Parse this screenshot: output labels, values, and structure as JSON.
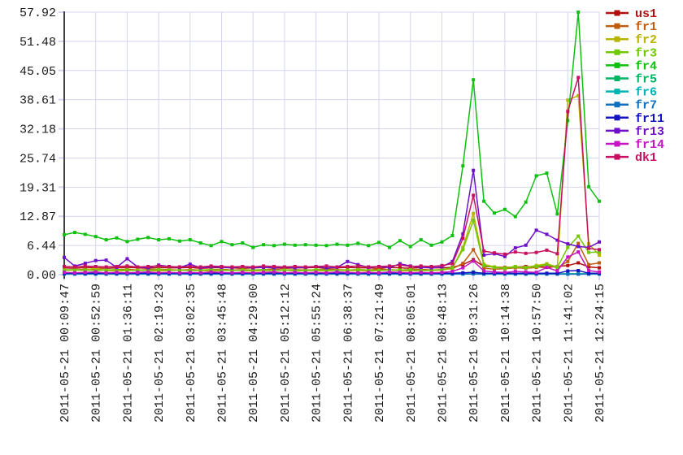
{
  "chart_data": {
    "type": "line",
    "title": "",
    "grid": true,
    "legend_position": "top-right",
    "grid_color": "#d4d4f0",
    "axis_color": "#404040",
    "label_color": "#1a1a1a",
    "ylim": [
      0,
      57.92
    ],
    "y_tick_labels": [
      "0.00",
      "6.44",
      "12.87",
      "19.31",
      "25.74",
      "32.18",
      "38.61",
      "45.05",
      "51.48",
      "57.92"
    ],
    "x_ticks_every": 3,
    "points_per_series": 52,
    "x_tick_labels": [
      "2011-05-21 00:09:47",
      "2011-05-21 00:52:59",
      "2011-05-21 01:36:11",
      "2011-05-21 02:19:23",
      "2011-05-21 03:02:35",
      "2011-05-21 03:45:48",
      "2011-05-21 04:29:00",
      "2011-05-21 05:12:12",
      "2011-05-21 05:55:24",
      "2011-05-21 06:38:37",
      "2011-05-21 07:21:49",
      "2011-05-21 08:05:01",
      "2011-05-21 08:48:13",
      "2011-05-21 09:31:26",
      "2011-05-21 10:14:38",
      "2011-05-21 10:57:50",
      "2011-05-21 11:41:02",
      "2011-05-21 12:24:15"
    ],
    "series": [
      {
        "name": "us1",
        "color": "#b01010",
        "values": [
          1.5,
          1.4,
          1.6,
          1.5,
          1.4,
          1.5,
          1.6,
          1.5,
          1.4,
          1.6,
          1.5,
          1.5,
          1.6,
          1.4,
          1.5,
          1.6,
          1.5,
          1.4,
          1.5,
          1.6,
          1.5,
          1.4,
          1.5,
          1.5,
          1.6,
          1.4,
          1.5,
          1.6,
          1.5,
          1.5,
          1.4,
          1.6,
          1.5,
          1.4,
          1.6,
          1.5,
          1.5,
          1.6,
          2.2,
          3.3,
          1.8,
          1.7,
          1.6,
          1.7,
          1.8,
          1.7,
          1.6,
          1.8,
          2.0,
          2.6,
          1.7,
          1.5
        ]
      },
      {
        "name": "fr1",
        "color": "#c05c10",
        "values": [
          1.1,
          1.0,
          1.2,
          1.1,
          1.0,
          1.1,
          1.2,
          1.0,
          1.1,
          1.2,
          1.1,
          1.0,
          1.1,
          1.0,
          1.1,
          1.2,
          1.0,
          1.1,
          1.0,
          1.1,
          1.2,
          1.0,
          1.1,
          1.0,
          1.1,
          1.2,
          1.1,
          1.0,
          1.1,
          1.0,
          1.2,
          1.1,
          1.0,
          1.1,
          1.2,
          1.0,
          1.1,
          1.3,
          2.5,
          5.5,
          1.4,
          1.2,
          1.3,
          1.5,
          1.4,
          1.6,
          2.1,
          1.5,
          2.9,
          6.9,
          2.2,
          2.6
        ]
      },
      {
        "name": "fr2",
        "color": "#b8b400",
        "values": [
          0.9,
          1.0,
          0.9,
          1.5,
          0.9,
          0.8,
          0.9,
          1.0,
          0.9,
          0.8,
          0.9,
          1.0,
          0.9,
          0.9,
          0.8,
          0.9,
          1.0,
          0.9,
          0.8,
          0.9,
          0.9,
          1.0,
          0.8,
          0.9,
          0.9,
          0.8,
          1.0,
          0.9,
          0.9,
          0.8,
          0.9,
          1.0,
          0.9,
          0.8,
          0.9,
          0.9,
          1.0,
          1.4,
          6.0,
          13.5,
          2.3,
          1.7,
          1.5,
          1.8,
          1.6,
          2.0,
          2.4,
          1.7,
          38.5,
          39.5,
          6.8,
          4.3
        ]
      },
      {
        "name": "fr3",
        "color": "#70c800",
        "values": [
          1.0,
          1.1,
          1.0,
          0.9,
          1.0,
          1.1,
          1.0,
          0.9,
          1.0,
          1.1,
          1.0,
          1.0,
          0.9,
          1.0,
          1.1,
          1.0,
          0.9,
          1.0,
          1.0,
          1.1,
          0.9,
          1.0,
          1.0,
          0.9,
          1.1,
          1.0,
          0.9,
          1.0,
          1.1,
          1.0,
          0.9,
          1.0,
          1.0,
          1.1,
          0.9,
          1.0,
          1.1,
          1.5,
          5.5,
          12.0,
          2.0,
          1.6,
          1.4,
          1.7,
          1.5,
          1.8,
          2.2,
          1.6,
          6.0,
          8.5,
          4.9,
          5.0
        ]
      },
      {
        "name": "fr4",
        "color": "#10c010",
        "values": [
          8.8,
          9.3,
          8.9,
          8.4,
          7.7,
          8.1,
          7.3,
          7.8,
          8.2,
          7.7,
          7.9,
          7.4,
          7.7,
          7.0,
          6.4,
          7.3,
          6.6,
          7.0,
          6.0,
          6.6,
          6.4,
          6.7,
          6.5,
          6.6,
          6.5,
          6.4,
          6.7,
          6.5,
          6.9,
          6.4,
          7.1,
          6.0,
          7.5,
          6.2,
          7.7,
          6.5,
          7.2,
          8.6,
          24.0,
          43.0,
          16.2,
          13.6,
          14.4,
          12.8,
          16.0,
          21.8,
          22.4,
          13.4,
          34.0,
          57.92,
          19.4,
          16.2
        ]
      },
      {
        "name": "fr5",
        "color": "#00b464",
        "values": [
          0.2,
          0.2,
          0.2,
          0.2,
          0.2,
          0.2,
          0.2,
          0.2,
          0.2,
          0.2,
          0.2,
          0.2,
          0.2,
          0.2,
          0.2,
          0.2,
          0.2,
          0.2,
          0.2,
          0.2,
          0.2,
          0.2,
          0.2,
          0.2,
          0.2,
          0.2,
          0.2,
          0.2,
          0.2,
          0.2,
          0.2,
          0.2,
          0.2,
          0.2,
          0.2,
          0.2,
          0.2,
          0.2,
          0.3,
          0.6,
          0.2,
          0.2,
          0.2,
          0.2,
          0.2,
          0.2,
          0.2,
          0.2,
          0.2,
          0.2,
          0.2,
          0.2
        ]
      },
      {
        "name": "fr6",
        "color": "#00b4b4",
        "values": [
          0.12,
          0.12,
          0.12,
          0.12,
          0.12,
          0.12,
          0.12,
          0.12,
          0.12,
          0.12,
          0.12,
          0.12,
          0.12,
          0.12,
          0.12,
          0.12,
          0.12,
          0.12,
          0.12,
          0.12,
          0.12,
          0.12,
          0.12,
          0.12,
          0.12,
          0.12,
          0.12,
          0.12,
          0.12,
          0.12,
          0.12,
          0.12,
          0.12,
          0.12,
          0.12,
          0.12,
          0.12,
          0.12,
          0.15,
          0.2,
          0.12,
          0.12,
          0.12,
          0.12,
          0.12,
          0.12,
          0.12,
          0.12,
          0.12,
          0.12,
          0.12,
          0.12
        ]
      },
      {
        "name": "fr7",
        "color": "#1070c0",
        "values": [
          0.1,
          0.1,
          0.1,
          0.1,
          0.1,
          0.1,
          0.1,
          0.1,
          0.1,
          0.1,
          0.1,
          0.1,
          0.1,
          0.1,
          0.1,
          0.1,
          0.1,
          0.1,
          0.1,
          0.1,
          0.1,
          0.1,
          0.1,
          0.1,
          0.1,
          0.1,
          0.1,
          0.1,
          0.1,
          0.1,
          0.1,
          0.1,
          0.1,
          0.1,
          0.1,
          0.1,
          0.1,
          0.1,
          0.12,
          0.15,
          0.1,
          0.1,
          0.1,
          0.1,
          0.1,
          0.1,
          0.1,
          0.1,
          0.1,
          0.1,
          0.1,
          0.1
        ]
      },
      {
        "name": "fr11",
        "color": "#1414c0",
        "values": [
          0.3,
          0.3,
          0.3,
          0.3,
          0.3,
          0.3,
          0.3,
          0.3,
          0.3,
          0.3,
          0.3,
          0.3,
          0.3,
          0.3,
          0.3,
          0.3,
          0.3,
          0.3,
          0.3,
          0.3,
          0.3,
          0.3,
          0.3,
          0.3,
          0.3,
          0.3,
          0.3,
          0.3,
          0.3,
          0.3,
          0.3,
          0.3,
          0.3,
          0.3,
          0.3,
          0.3,
          0.3,
          0.3,
          0.4,
          0.5,
          0.3,
          0.3,
          0.3,
          0.3,
          0.3,
          0.3,
          0.3,
          0.3,
          0.8,
          0.9,
          0.3,
          0.3
        ]
      },
      {
        "name": "fr13",
        "color": "#6e10c8",
        "values": [
          3.8,
          1.9,
          2.5,
          3.1,
          3.2,
          1.6,
          3.5,
          1.7,
          1.5,
          2.1,
          1.8,
          1.6,
          2.3,
          1.5,
          1.7,
          1.6,
          1.5,
          1.8,
          1.5,
          1.6,
          1.5,
          1.7,
          1.5,
          1.6,
          1.8,
          1.5,
          1.6,
          2.9,
          2.2,
          1.6,
          1.8,
          1.5,
          2.4,
          1.9,
          1.6,
          1.5,
          1.7,
          2.9,
          9.0,
          23.0,
          4.3,
          4.6,
          4.0,
          5.9,
          6.5,
          9.8,
          8.9,
          7.6,
          6.8,
          6.2,
          6.0,
          7.2
        ]
      },
      {
        "name": "fr14",
        "color": "#c414c4",
        "values": [
          0.5,
          0.4,
          0.5,
          0.6,
          0.4,
          0.5,
          0.4,
          0.5,
          0.6,
          0.4,
          0.5,
          0.4,
          0.5,
          0.4,
          0.6,
          0.5,
          0.4,
          0.5,
          0.4,
          0.5,
          0.6,
          0.4,
          0.5,
          0.4,
          0.5,
          0.4,
          0.6,
          0.5,
          0.4,
          0.5,
          0.4,
          0.6,
          0.5,
          0.4,
          0.5,
          0.4,
          0.5,
          0.7,
          1.5,
          3.0,
          0.8,
          0.6,
          0.5,
          0.7,
          0.6,
          0.5,
          1.6,
          0.8,
          3.9,
          5.0,
          0.9,
          0.6
        ]
      },
      {
        "name": "dk1",
        "color": "#c81060",
        "values": [
          1.8,
          1.7,
          1.9,
          1.8,
          1.7,
          1.8,
          1.9,
          1.7,
          1.8,
          1.9,
          1.8,
          1.7,
          1.8,
          1.7,
          1.9,
          1.8,
          1.7,
          1.8,
          1.7,
          1.9,
          1.8,
          1.7,
          1.8,
          1.7,
          1.8,
          1.9,
          1.7,
          1.8,
          1.9,
          1.7,
          1.8,
          1.9,
          2.1,
          1.8,
          1.9,
          1.8,
          2.0,
          2.4,
          8.0,
          17.5,
          5.2,
          4.8,
          4.5,
          5.0,
          4.7,
          4.9,
          5.4,
          4.6,
          36.0,
          43.5,
          5.8,
          5.5
        ]
      }
    ]
  }
}
